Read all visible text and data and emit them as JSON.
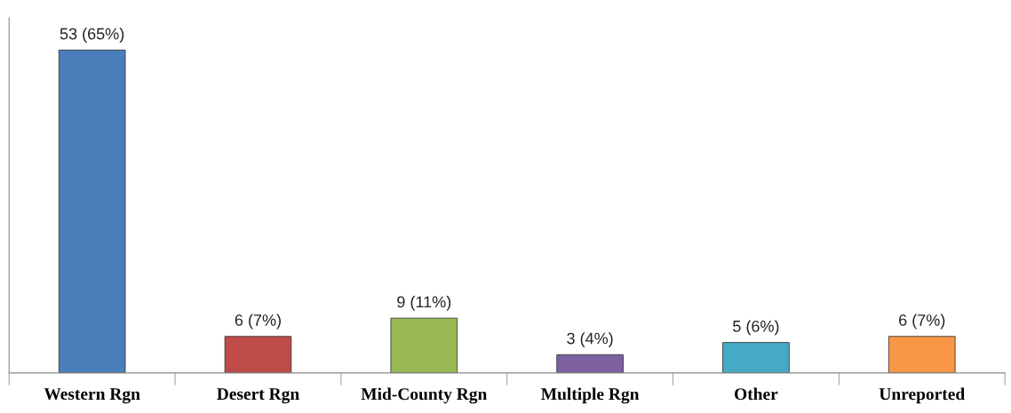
{
  "chart_data": {
    "type": "bar",
    "categories": [
      "Western Rgn",
      "Desert Rgn",
      "Mid-County Rgn",
      "Multiple Rgn",
      "Other",
      "Unreported"
    ],
    "values": [
      53,
      6,
      9,
      3,
      5,
      6
    ],
    "colors": [
      "#4a7ebb",
      "#be4b48",
      "#98b954",
      "#7d60a0",
      "#46aac5",
      "#f79646"
    ],
    "value_labels": [
      "53 (65%)",
      "6 (7%)",
      "9 (11%)",
      "3 (4%)",
      "5 (6%)",
      "6 (7%)"
    ],
    "grid": false,
    "legend": false
  }
}
